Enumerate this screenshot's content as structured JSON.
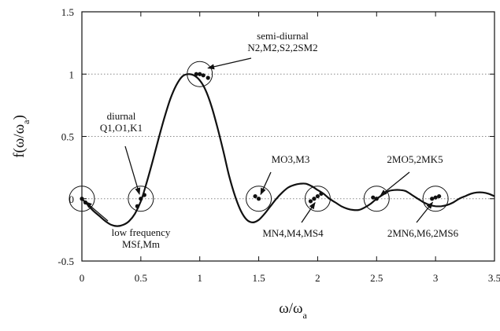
{
  "chart_data": {
    "type": "line",
    "title": "",
    "xlabel": {
      "main": "ω/ω",
      "sub": "a"
    },
    "ylabel": {
      "pre": "f(ω/ω",
      "sub": "a",
      "post": ")"
    },
    "xlim": [
      0,
      3.5
    ],
    "ylim": [
      -0.5,
      1.5
    ],
    "xticks": [
      "0",
      "0.5",
      "1",
      "1.5",
      "2",
      "2.5",
      "3",
      "3.5"
    ],
    "xtick_values": [
      0,
      0.5,
      1,
      1.5,
      2,
      2.5,
      3,
      3.5
    ],
    "yticks": [
      "-0.5",
      "0",
      "0.5",
      "1",
      "1.5"
    ],
    "ytick_values": [
      -0.5,
      0,
      0.5,
      1,
      1.5
    ],
    "grid": "horizontal dotted at 0, 0.5, 1",
    "series": [
      {
        "function": "sin(pi*x)/(pi*x)",
        "x": [
          0,
          0.05,
          0.1,
          0.15,
          0.2,
          0.25,
          0.3,
          0.35,
          0.4,
          0.45,
          0.5,
          0.55,
          0.6,
          0.65,
          0.7,
          0.75,
          0.8,
          0.85,
          0.9,
          0.95,
          1.0,
          1.05,
          1.1,
          1.15,
          1.2,
          1.25,
          1.3,
          1.35,
          1.4,
          1.45,
          1.5,
          1.55,
          1.6,
          1.65,
          1.7,
          1.75,
          1.8,
          1.85,
          1.9,
          1.95,
          2.0,
          2.05,
          2.1,
          2.15,
          2.2,
          2.25,
          2.3,
          2.35,
          2.4,
          2.45,
          2.5,
          2.55,
          2.6,
          2.65,
          2.7,
          2.75,
          2.8,
          2.85,
          2.9,
          2.95,
          3.0,
          3.05,
          3.1,
          3.15,
          3.2,
          3.25,
          3.3,
          3.35,
          3.4,
          3.45,
          3.5
        ],
        "y": [
          0,
          -0.05,
          -0.1,
          -0.14,
          -0.18,
          -0.21,
          -0.22,
          -0.21,
          -0.18,
          -0.12,
          -0.02,
          0.13,
          0.3,
          0.48,
          0.65,
          0.8,
          0.91,
          0.98,
          1.0,
          0.99,
          0.95,
          0.87,
          0.74,
          0.57,
          0.38,
          0.18,
          0.02,
          -0.1,
          -0.17,
          -0.19,
          -0.17,
          -0.12,
          -0.06,
          0.0,
          0.05,
          0.09,
          0.11,
          0.12,
          0.12,
          0.1,
          0.07,
          0.04,
          0.0,
          -0.03,
          -0.06,
          -0.08,
          -0.09,
          -0.09,
          -0.07,
          -0.04,
          0.0,
          0.03,
          0.06,
          0.07,
          0.07,
          0.06,
          0.03,
          0.0,
          -0.03,
          -0.05,
          -0.06,
          -0.06,
          -0.05,
          -0.03,
          0.0,
          0.02,
          0.04,
          0.05,
          0.05,
          0.04,
          0.02
        ]
      }
    ],
    "constituent_points": [
      {
        "x": 0.0,
        "y": 0.0
      },
      {
        "x": 0.03,
        "y": -0.03
      },
      {
        "x": 0.47,
        "y": -0.06
      },
      {
        "x": 0.5,
        "y": 0.0
      },
      {
        "x": 0.53,
        "y": 0.03
      },
      {
        "x": 0.97,
        "y": 1.0
      },
      {
        "x": 1.0,
        "y": 1.0
      },
      {
        "x": 1.03,
        "y": 0.99
      },
      {
        "x": 1.07,
        "y": 0.97
      },
      {
        "x": 1.47,
        "y": 0.02
      },
      {
        "x": 1.5,
        "y": 0.0
      },
      {
        "x": 1.94,
        "y": -0.02
      },
      {
        "x": 1.97,
        "y": 0.0
      },
      {
        "x": 2.0,
        "y": 0.02
      },
      {
        "x": 2.03,
        "y": 0.04
      },
      {
        "x": 2.47,
        "y": 0.01
      },
      {
        "x": 2.5,
        "y": 0.0
      },
      {
        "x": 2.97,
        "y": 0.0
      },
      {
        "x": 3.0,
        "y": 0.01
      },
      {
        "x": 3.03,
        "y": 0.02
      }
    ],
    "circles": [
      {
        "x": 0.0,
        "y": 0.0
      },
      {
        "x": 0.5,
        "y": 0.0
      },
      {
        "x": 1.0,
        "y": 1.0
      },
      {
        "x": 1.5,
        "y": 0.0
      },
      {
        "x": 2.0,
        "y": 0.0
      },
      {
        "x": 2.5,
        "y": 0.0
      },
      {
        "x": 3.0,
        "y": 0.0
      }
    ],
    "annotations": [
      {
        "id": "semi-diurnal",
        "lines": [
          "semi-diurnal",
          "N2,M2,S2,2SM2"
        ],
        "arrow_to": {
          "x": 1.03,
          "y": 1.04
        }
      },
      {
        "id": "diurnal",
        "lines": [
          "diurnal",
          "Q1,O1,K1"
        ],
        "arrow_to": {
          "x": 0.5,
          "y": 0.0
        }
      },
      {
        "id": "mo3",
        "lines": [
          "MO3,M3"
        ],
        "arrow_to": {
          "x": 1.5,
          "y": 0.0
        }
      },
      {
        "id": "2mo5",
        "lines": [
          "2MO5,2MK5"
        ],
        "arrow_to": {
          "x": 2.5,
          "y": 0.0
        }
      },
      {
        "id": "low-frequency",
        "lines": [
          "low frequency",
          "MSf,Mm"
        ],
        "arrow_to": {
          "x": 0.0,
          "y": 0.0
        }
      },
      {
        "id": "mn4",
        "lines": [
          "MN4,M4,MS4"
        ],
        "arrow_to": {
          "x": 2.0,
          "y": 0.0
        }
      },
      {
        "id": "2mn6",
        "lines": [
          "2MN6,M6,2MS6"
        ],
        "arrow_to": {
          "x": 3.0,
          "y": 0.0
        }
      }
    ],
    "colors": {
      "line": "#111111",
      "grid": "#888888",
      "axis": "#111111",
      "background": "#ffffff"
    }
  }
}
